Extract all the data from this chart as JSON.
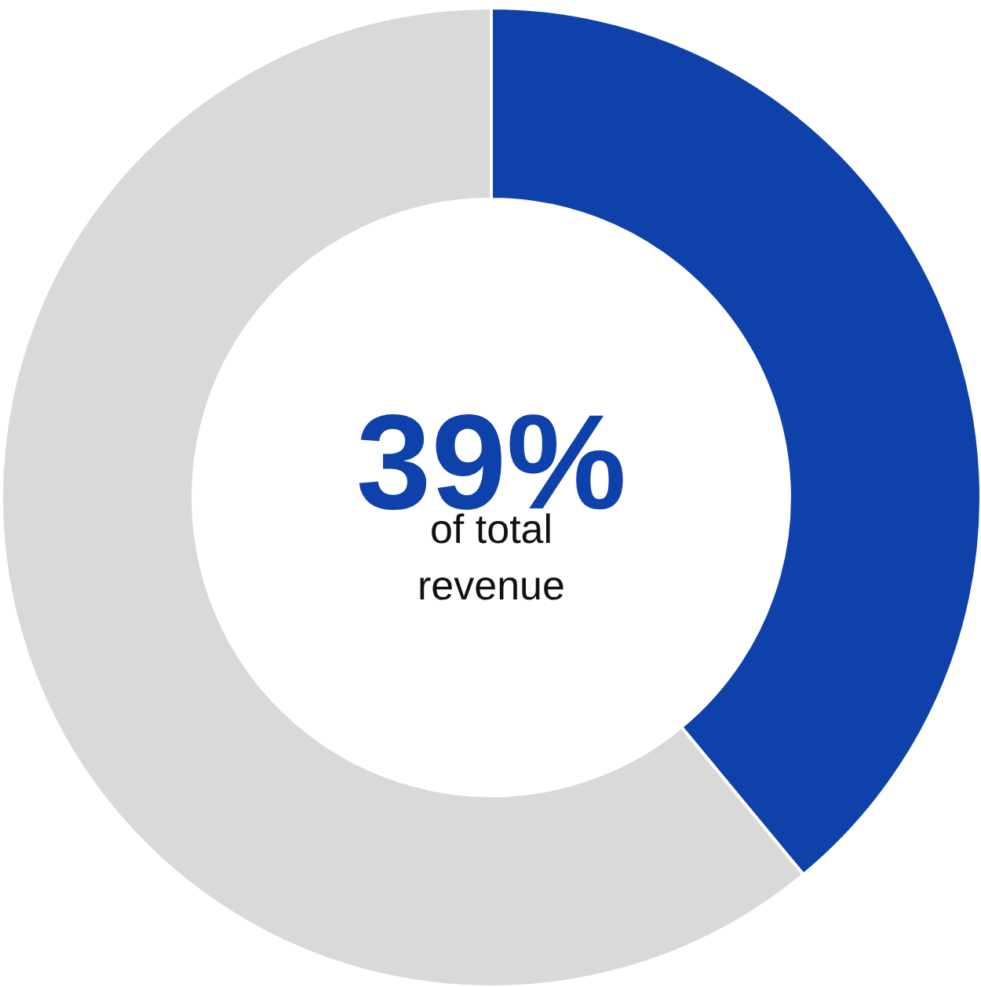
{
  "chart_data": {
    "type": "donut",
    "categories": [
      null,
      null
    ],
    "values": [
      39,
      61
    ],
    "colors": [
      "#0e41aa",
      "#d9d9d9"
    ],
    "value_labels": [
      "39%",
      null
    ],
    "annotations": [
      "of total revenue"
    ]
  }
}
